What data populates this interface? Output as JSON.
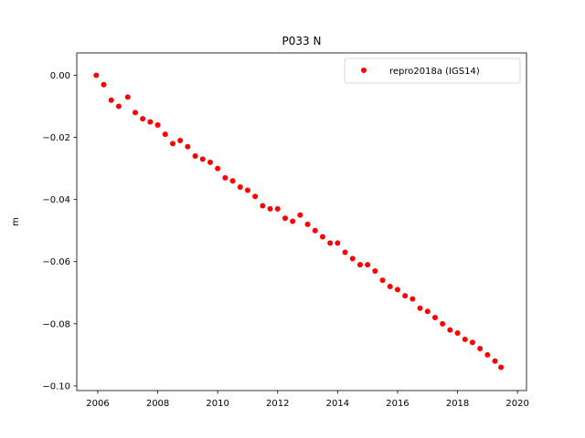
{
  "chart_data": {
    "type": "scatter",
    "title": "P033 N",
    "xlabel": "",
    "ylabel": "m",
    "xlim": [
      2005.3,
      2020.3
    ],
    "ylim": [
      -0.1015,
      0.0072
    ],
    "xticks": [
      2006,
      2008,
      2010,
      2012,
      2014,
      2016,
      2018,
      2020
    ],
    "xtick_labels": [
      "2006",
      "2008",
      "2010",
      "2012",
      "2014",
      "2016",
      "2018",
      "2020"
    ],
    "yticks": [
      0.0,
      -0.02,
      -0.04,
      -0.06,
      -0.08,
      -0.1
    ],
    "ytick_labels": [
      "0.00",
      "−0.02",
      "−0.04",
      "−0.06",
      "−0.08",
      "−0.10"
    ],
    "legend": {
      "position": "top-right",
      "entries": [
        "repro2018a (IGS14)"
      ]
    },
    "grid": false,
    "series": [
      {
        "name": "repro2018a (IGS14)",
        "color": "#ff0000",
        "marker": "circle",
        "x": [
          2005.95,
          2006.2,
          2006.45,
          2006.7,
          2007.0,
          2007.25,
          2007.5,
          2007.75,
          2008.0,
          2008.25,
          2008.5,
          2008.75,
          2009.0,
          2009.25,
          2009.5,
          2009.75,
          2010.0,
          2010.25,
          2010.5,
          2010.75,
          2011.0,
          2011.25,
          2011.5,
          2011.75,
          2012.0,
          2012.25,
          2012.5,
          2012.75,
          2013.0,
          2013.25,
          2013.5,
          2013.75,
          2014.0,
          2014.25,
          2014.5,
          2014.75,
          2015.0,
          2015.25,
          2015.5,
          2015.75,
          2016.0,
          2016.25,
          2016.5,
          2016.75,
          2017.0,
          2017.25,
          2017.5,
          2017.75,
          2018.0,
          2018.25,
          2018.5,
          2018.75,
          2019.0,
          2019.25,
          2019.45
        ],
        "y": [
          0.0,
          -0.003,
          -0.008,
          -0.01,
          -0.007,
          -0.012,
          -0.014,
          -0.015,
          -0.016,
          -0.019,
          -0.022,
          -0.021,
          -0.023,
          -0.026,
          -0.027,
          -0.028,
          -0.03,
          -0.033,
          -0.034,
          -0.036,
          -0.037,
          -0.039,
          -0.042,
          -0.043,
          -0.043,
          -0.046,
          -0.047,
          -0.045,
          -0.048,
          -0.05,
          -0.052,
          -0.054,
          -0.054,
          -0.057,
          -0.059,
          -0.061,
          -0.061,
          -0.063,
          -0.066,
          -0.068,
          -0.069,
          -0.071,
          -0.072,
          -0.075,
          -0.076,
          -0.078,
          -0.08,
          -0.082,
          -0.083,
          -0.085,
          -0.086,
          -0.088,
          -0.09,
          -0.092,
          -0.094
        ]
      }
    ]
  }
}
